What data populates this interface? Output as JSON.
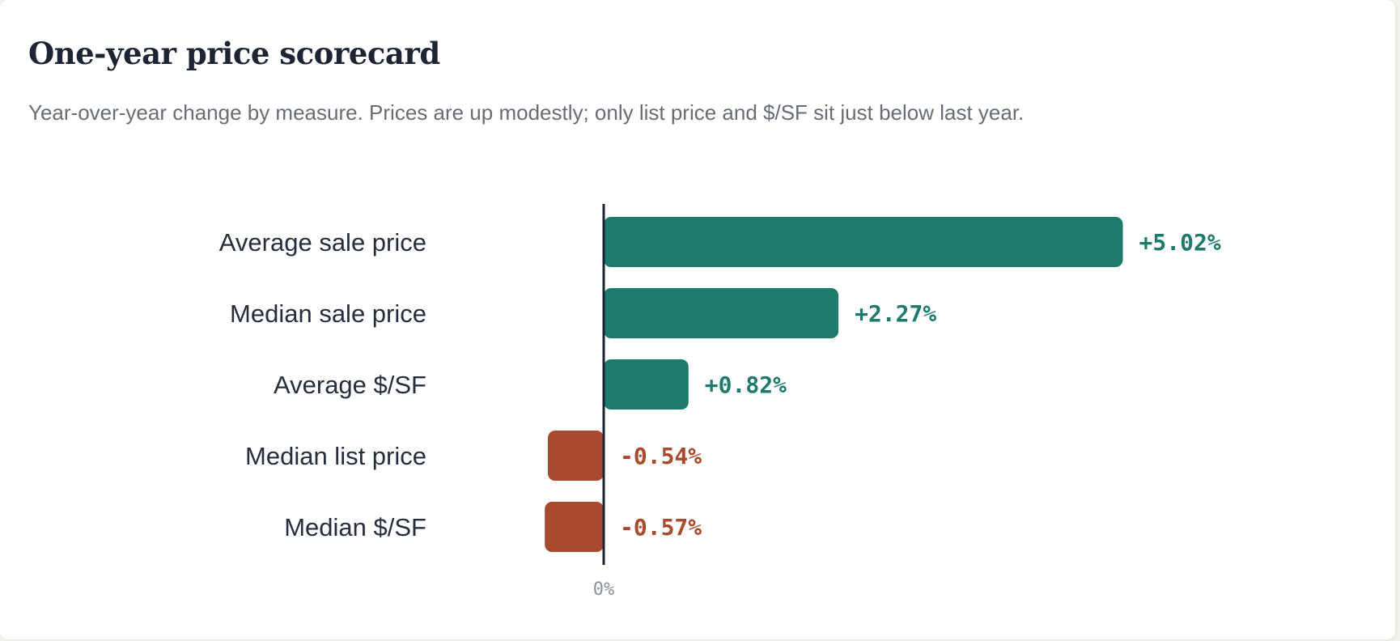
{
  "header": {
    "title": "One-year price scorecard",
    "subtitle": "Year-over-year change by measure. Prices are up modestly; only list price and $/SF sit just below last year."
  },
  "colors": {
    "positive": "#1e7b6c",
    "negative": "#a84a2e",
    "baseline": "#1a2233"
  },
  "chart_data": {
    "type": "bar",
    "orientation": "horizontal",
    "title": "One-year price scorecard",
    "subtitle": "Year-over-year change by measure. Prices are up modestly; only list price and $/SF sit just below last year.",
    "categories": [
      "Average sale price",
      "Median sale price",
      "Average $/SF",
      "Median list price",
      "Median $/SF"
    ],
    "values": [
      5.02,
      2.27,
      0.82,
      -0.54,
      -0.57
    ],
    "value_labels": [
      "+5.02%",
      "+2.27%",
      "+0.82%",
      "-0.54%",
      "-0.57%"
    ],
    "baseline_tick": "0%",
    "unit": "%",
    "grid": false,
    "legend": "none"
  }
}
